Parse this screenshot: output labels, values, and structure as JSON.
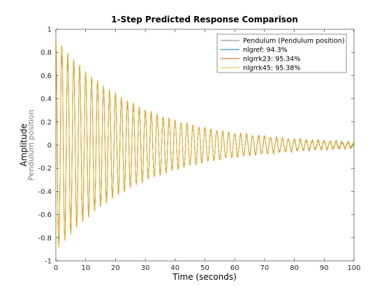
{
  "chart_data": {
    "type": "line",
    "title": "1-Step Predicted Response Comparison",
    "xlabel": "Time (seconds)",
    "ylabel": "Amplitude",
    "ylabel_sub": "Pendulum position",
    "xlim": [
      0,
      100
    ],
    "ylim": [
      -1,
      1
    ],
    "x_ticks": [
      0,
      10,
      20,
      30,
      40,
      50,
      60,
      70,
      80,
      90,
      100
    ],
    "y_ticks": [
      -1,
      -0.8,
      -0.6,
      -0.4,
      -0.2,
      0,
      0.2,
      0.4,
      0.6,
      0.8,
      1
    ],
    "x_tick_labels": [
      "0",
      "10",
      "20",
      "30",
      "40",
      "50",
      "60",
      "70",
      "80",
      "90",
      "100"
    ],
    "y_tick_labels": [
      "-1",
      "-0.8",
      "-0.6",
      "-0.4",
      "-0.2",
      "0",
      "0.2",
      "0.4",
      "0.6",
      "0.8",
      "1"
    ],
    "grid": false,
    "legend_position": "top-right",
    "signal_model": {
      "description_free_params": true,
      "amplitude_start": 0.92,
      "decay_rate": 0.0365,
      "period": 2.0,
      "noise_floor": 0.012,
      "duration": 100
    },
    "series": [
      {
        "name": "Pendulum (Pendulum position)",
        "color": "#808080",
        "amp_scale": 1.0,
        "phase_shift": 0.0
      },
      {
        "name": "nlgref: 94.3%",
        "color": "#0072BD",
        "amp_scale": 0.985,
        "phase_shift": 0.02
      },
      {
        "name": "nlgrrk23: 95.34%",
        "color": "#D95319",
        "amp_scale": 0.995,
        "phase_shift": 0.005
      },
      {
        "name": "nlgrrk45: 95.38%",
        "color": "#EDB120",
        "amp_scale": 1.0,
        "phase_shift": 0.0
      }
    ]
  }
}
